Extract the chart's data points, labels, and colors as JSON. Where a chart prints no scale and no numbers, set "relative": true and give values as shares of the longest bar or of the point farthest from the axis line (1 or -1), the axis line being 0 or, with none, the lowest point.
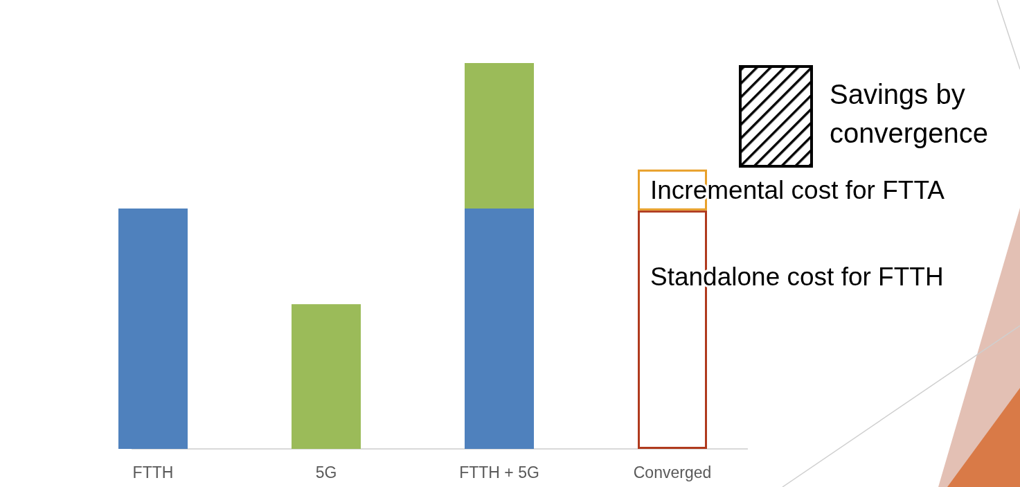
{
  "chart_data": {
    "type": "bar",
    "relative": true,
    "stacked": true,
    "categories": [
      "FTTH",
      "5G",
      "FTTH + 5G",
      "Converged"
    ],
    "series": [
      {
        "color": "#4f81bd",
        "values": [
          0.623,
          null,
          0.623,
          null
        ]
      },
      {
        "color": "#9bbb59",
        "values": [
          null,
          0.375,
          0.377,
          null
        ]
      },
      {
        "name": "Standalone cost for FTTH",
        "color": "#b03a1e",
        "values": [
          null,
          null,
          null,
          0.618
        ]
      },
      {
        "name": "Incremental cost for FTTA",
        "color": "#e8a02a",
        "values": [
          null,
          null,
          null,
          0.106
        ]
      }
    ],
    "annotations": [
      "Savings by convergence"
    ]
  }
}
